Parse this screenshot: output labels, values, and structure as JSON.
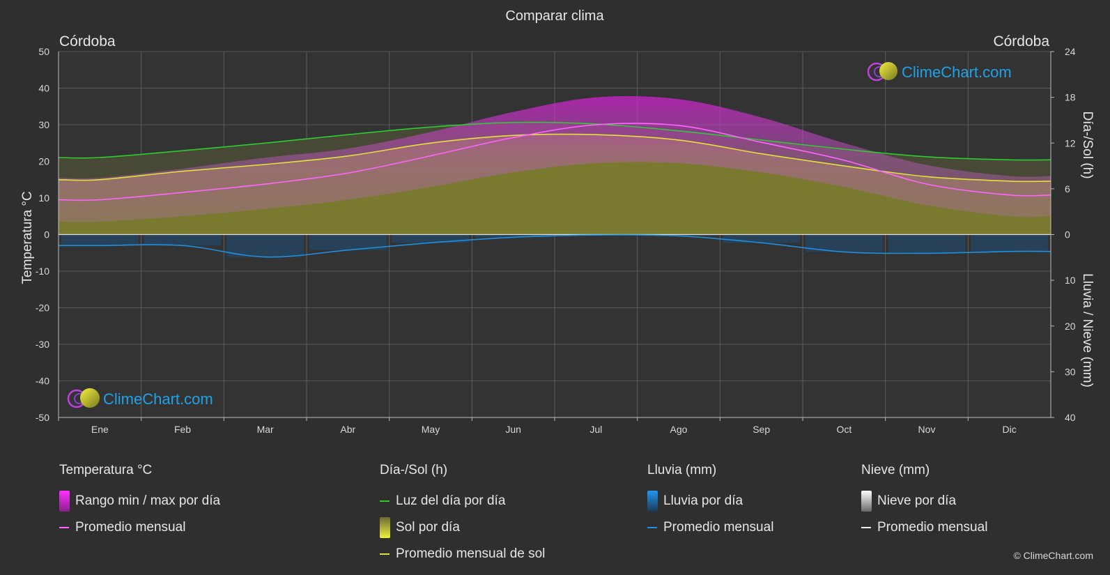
{
  "chart_data": {
    "type": "area",
    "title": "Comparar clima",
    "location_left": "Córdoba",
    "location_right": "Córdoba",
    "y_left_label": "Temperatura °C",
    "y_right_top_label": "Día-/Sol (h)",
    "y_right_bottom_label": "Lluvia / Nieve (mm)",
    "y_left_ticks": [
      50,
      40,
      30,
      20,
      10,
      0,
      -10,
      -20,
      -30,
      -40,
      -50
    ],
    "y_right_top_ticks": [
      24,
      18,
      12,
      6,
      0
    ],
    "y_right_bottom_ticks": [
      10,
      20,
      30,
      40
    ],
    "ylim_temperature": [
      -50,
      50
    ],
    "ylim_sun_hours": [
      0,
      24
    ],
    "ylim_precip_mm": [
      0,
      40
    ],
    "months": [
      "Ene",
      "Feb",
      "Mar",
      "Abr",
      "May",
      "Jun",
      "Jul",
      "Ago",
      "Sep",
      "Oct",
      "Nov",
      "Dic"
    ],
    "grid": true,
    "series": [
      {
        "name": "Luz del día por día",
        "unit": "h",
        "color": "#2ecc2e",
        "values": [
          10.1,
          11.0,
          12.0,
          13.1,
          14.1,
          14.7,
          14.5,
          13.6,
          12.4,
          11.2,
          10.2,
          9.8
        ]
      },
      {
        "name": "Promedio mensual de sol",
        "unit": "h",
        "color": "#e2e23a",
        "values": [
          7.2,
          8.3,
          9.2,
          10.3,
          12.0,
          13.0,
          13.1,
          12.4,
          10.6,
          9.0,
          7.6,
          7.0
        ]
      },
      {
        "name": "Promedio mensual temperatura",
        "unit": "°C",
        "color": "#ff66ff",
        "values": [
          9.5,
          11.5,
          13.8,
          16.8,
          21.5,
          26.5,
          30.0,
          29.8,
          25.2,
          20.3,
          13.8,
          10.8
        ]
      },
      {
        "name": "Temperatura máxima media",
        "unit": "°C",
        "values": [
          15.5,
          18.0,
          21.0,
          23.5,
          28.0,
          33.5,
          37.5,
          37.0,
          32.0,
          25.0,
          19.0,
          16.0
        ]
      },
      {
        "name": "Temperatura mínima media",
        "unit": "°C",
        "values": [
          3.5,
          5.0,
          7.0,
          9.5,
          13.0,
          17.0,
          19.5,
          19.5,
          17.0,
          13.0,
          8.0,
          5.0
        ]
      },
      {
        "name": "Promedio mensual lluvia",
        "unit": "mm",
        "color": "#1f8fe0",
        "values": [
          2.4,
          2.4,
          4.9,
          3.4,
          1.8,
          0.6,
          0.1,
          0.3,
          1.8,
          3.8,
          4.1,
          3.7
        ]
      }
    ],
    "legend": {
      "temperature": {
        "header": "Temperatura °C",
        "range": "Rango min / max por día",
        "avg": "Promedio mensual"
      },
      "sun": {
        "header": "Día-/Sol (h)",
        "daylight": "Luz del día por día",
        "sun_day": "Sol por día",
        "sun_avg": "Promedio mensual de sol"
      },
      "rain": {
        "header": "Lluvia (mm)",
        "rain_day": "Lluvia por día",
        "avg": "Promedio mensual"
      },
      "snow": {
        "header": "Nieve (mm)",
        "snow_day": "Nieve por día",
        "avg": "Promedio mensual"
      }
    }
  },
  "watermark": "ClimeChart.com",
  "copyright": "© ClimeChart.com",
  "colors": {
    "background": "#2f2f2f",
    "text": "#e6e6e6",
    "grid": "#5a5a5a",
    "brand": "#1fa2e8"
  }
}
